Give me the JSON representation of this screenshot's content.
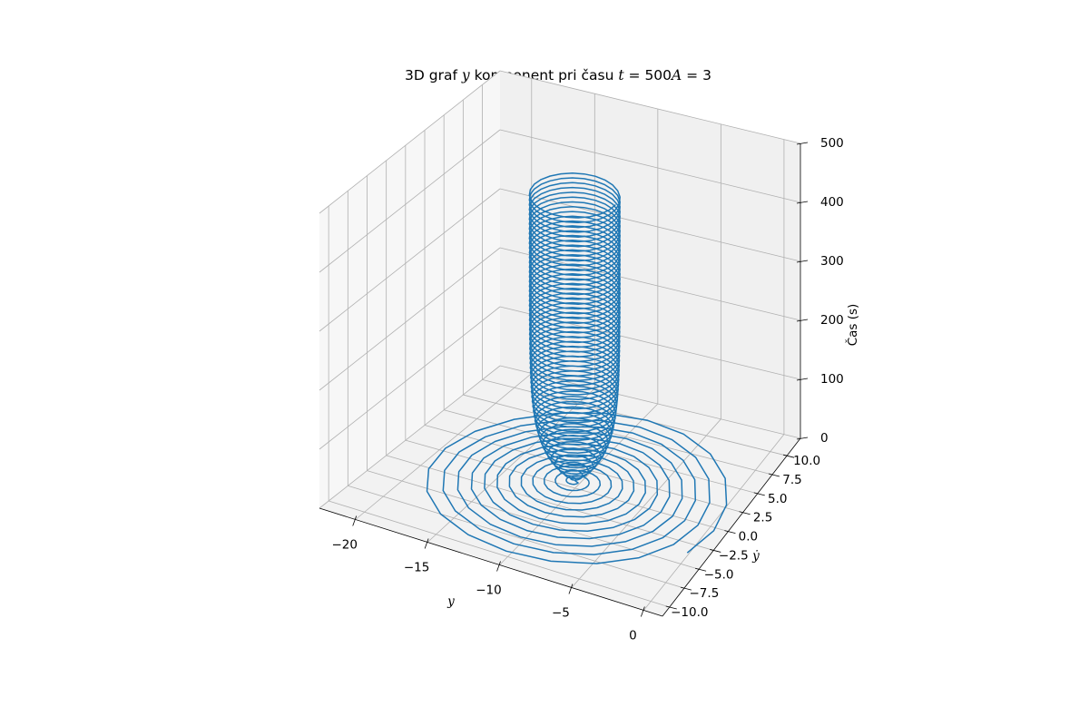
{
  "chart_data": {
    "type": "line3d",
    "title": "3D graf y komponent pri času t = 500 A = 3",
    "title_parts": {
      "prefix": "3D graf ",
      "var_y": "y",
      "mid": " komponent pri času ",
      "var_t": "t",
      "eq1": " = 500",
      "var_A": "A",
      "eq2": " = 3"
    },
    "xlabel": "y",
    "ylabel": "ẏ",
    "zlabel": "Čas (s)",
    "xlim": [
      -22.5,
      1.3
    ],
    "ylim": [
      -11.2,
      12.3
    ],
    "zlim": [
      0,
      500
    ],
    "xticks": [
      -20,
      -15,
      -10,
      -5,
      0
    ],
    "xtick_labels": [
      "−20",
      "−15",
      "−10",
      "−5",
      "0"
    ],
    "yticks": [
      -10.0,
      -7.5,
      -5.0,
      -2.5,
      0.0,
      2.5,
      5.0,
      7.5,
      10.0
    ],
    "ytick_labels": [
      "−10.0",
      "−7.5",
      "−5.0",
      "−2.5",
      "0.0",
      "2.5",
      "5.0",
      "7.5",
      "10.0"
    ],
    "zticks": [
      0,
      100,
      200,
      300,
      400,
      500
    ],
    "ztick_labels": [
      "0",
      "100",
      "200",
      "300",
      "400",
      "500"
    ],
    "grid": true,
    "series": [
      {
        "description": "spiral trajectory around center (y=-10, ẏ=0), radius growing from ~10.5 to 0 in the base plane, then a tight vertical cylinder of radius ~3 rising to t=500",
        "color": "#1f77b4",
        "center": [
          -10,
          0
        ],
        "spiral_turns": 12,
        "spiral_r_start": 10.5,
        "spiral_r_end": 0.3,
        "spiral_t_end": 12,
        "tube_radius": 3,
        "tube_turns": 60,
        "tube_t_end": 500
      }
    ]
  }
}
